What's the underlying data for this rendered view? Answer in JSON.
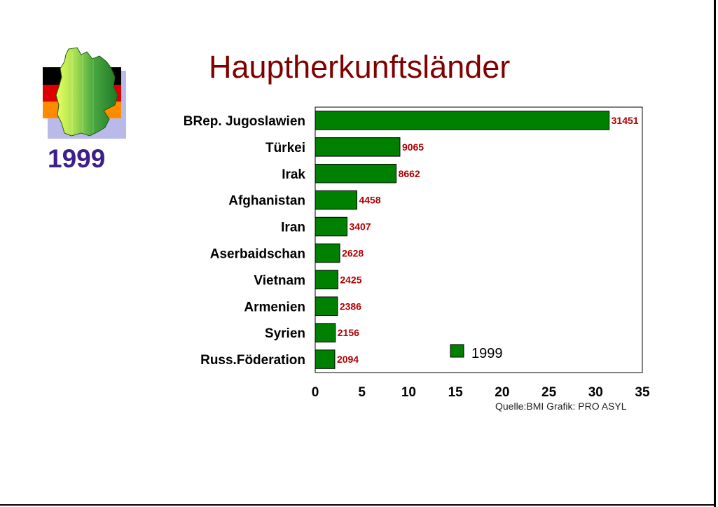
{
  "slide": {
    "title": "Hauptherkunftsländer",
    "year_label": "1999",
    "source": "Quelle:BMI Grafik: PRO ASYL"
  },
  "colors": {
    "title": "#800000",
    "year": "#3d1f8a",
    "bar": "#008000",
    "value_label": "#b00000"
  },
  "logo": {
    "icon": "germany-map-flag-icon",
    "flag_colors": [
      "#000000",
      "#dd0000",
      "#ff8c00"
    ]
  },
  "chart_data": {
    "type": "bar",
    "orientation": "horizontal",
    "categories": [
      "BRep. Jugoslawien",
      "Türkei",
      "Irak",
      "Afghanistan",
      "Iran",
      "Aserbaidschan",
      "Vietnam",
      "Armenien",
      "Syrien",
      "Russ.Föderation"
    ],
    "series": [
      {
        "name": "1999",
        "values": [
          31451,
          9065,
          8662,
          4458,
          3407,
          2628,
          2425,
          2386,
          2156,
          2094
        ],
        "labels": [
          "31451",
          "9065",
          "8662",
          "4458",
          "3407",
          "2628",
          "2425",
          "2386",
          "2156",
          "2094"
        ]
      }
    ],
    "x_unit_scale": 1000,
    "xlim": [
      0,
      35
    ],
    "x_ticks": [
      "0",
      "5",
      "10",
      "15",
      "20",
      "25",
      "30",
      "35"
    ],
    "legend_position": "bottom-right inside plot",
    "grid": false
  }
}
